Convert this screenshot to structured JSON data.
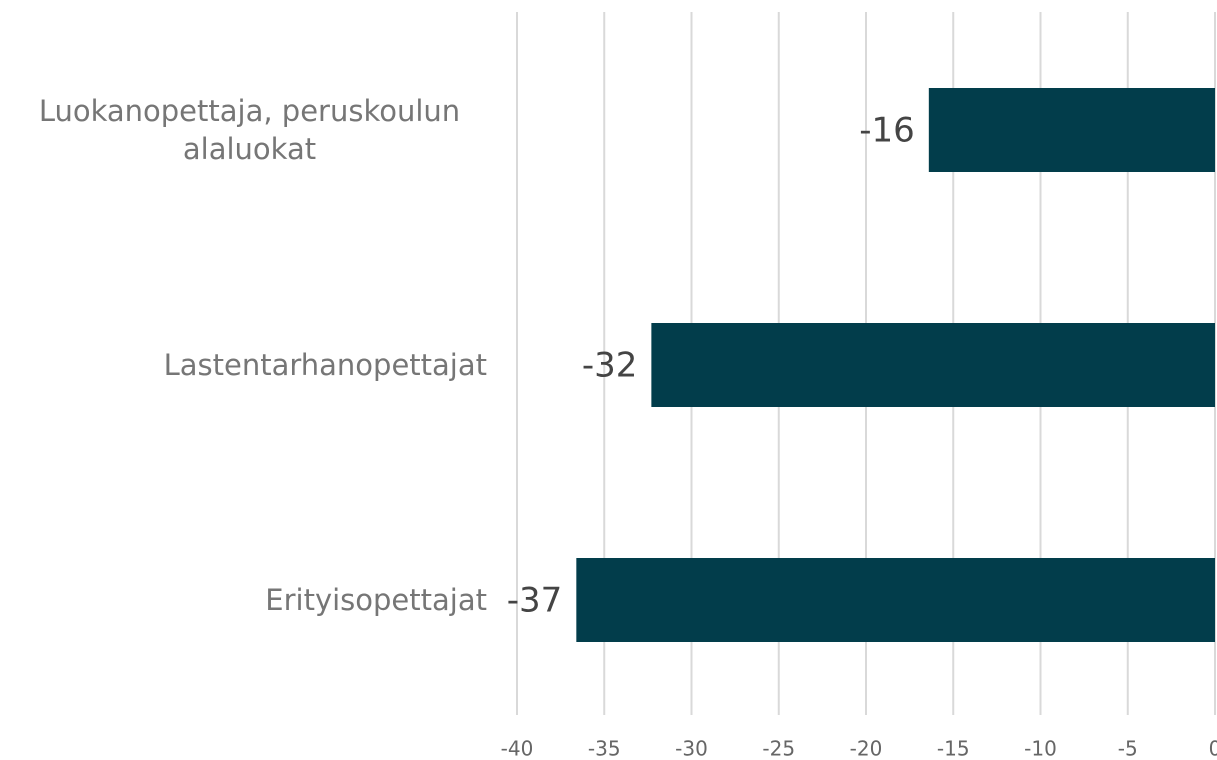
{
  "chart_data": {
    "type": "bar",
    "orientation": "horizontal",
    "categories": [
      "Luokanopettaja, peruskoulun alaluokat",
      "Lastentarhanopettajat",
      "Erityisopettajat"
    ],
    "values": [
      -16.4,
      -32.3,
      -36.6
    ],
    "value_labels": [
      "-16",
      "-32",
      "-37"
    ],
    "color": "#023d4b",
    "xlim": [
      -40,
      0
    ],
    "xticks": [
      -40,
      -35,
      -30,
      -25,
      -20,
      -15,
      -10,
      -5,
      0
    ],
    "grid": true
  }
}
